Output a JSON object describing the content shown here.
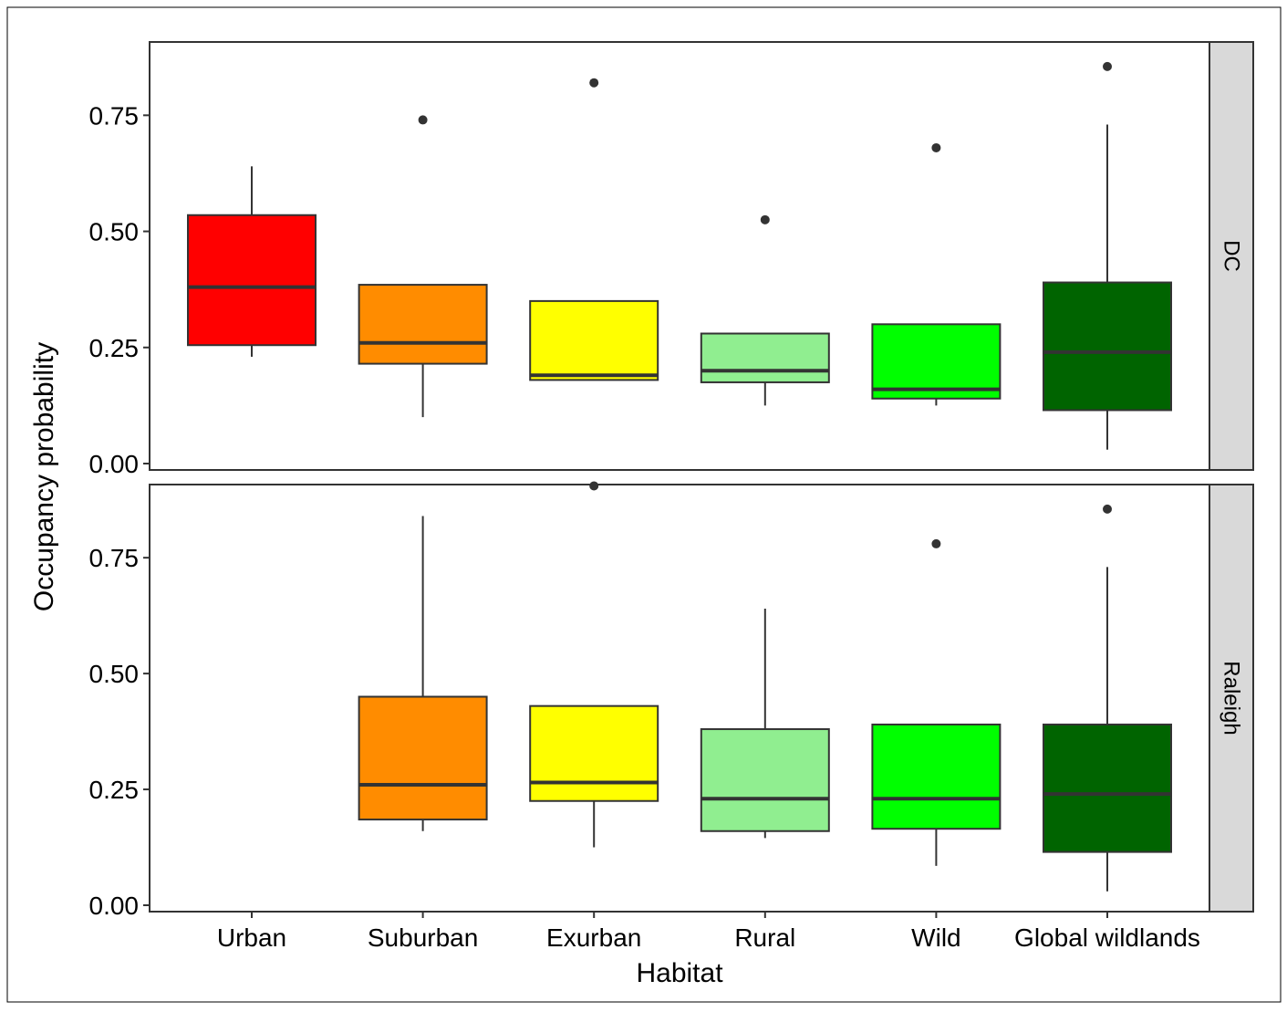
{
  "chart_data": {
    "type": "boxplot",
    "xlabel": "Habitat",
    "ylabel": "Occupancy probability",
    "categories": [
      "Urban",
      "Suburban",
      "Exurban",
      "Rural",
      "Wild",
      "Global wildlands"
    ],
    "colors": [
      "#ff0000",
      "#ff8c00",
      "#ffff00",
      "#90ee90",
      "#00ff00",
      "#006400"
    ],
    "ylim": [
      0,
      0.9
    ],
    "yticks": [
      "0.00",
      "0.25",
      "0.50",
      "0.75"
    ],
    "grid": false,
    "facets": [
      {
        "label": "DC",
        "boxes": [
          {
            "category": "Urban",
            "whisker_low": 0.23,
            "q1": 0.255,
            "median": 0.38,
            "q3": 0.535,
            "whisker_high": 0.64,
            "outliers": []
          },
          {
            "category": "Suburban",
            "whisker_low": 0.1,
            "q1": 0.215,
            "median": 0.26,
            "q3": 0.385,
            "whisker_high": 0.385,
            "outliers": [
              0.74
            ]
          },
          {
            "category": "Exurban",
            "whisker_low": 0.18,
            "q1": 0.18,
            "median": 0.19,
            "q3": 0.35,
            "whisker_high": 0.35,
            "outliers": [
              0.82
            ]
          },
          {
            "category": "Rural",
            "whisker_low": 0.125,
            "q1": 0.175,
            "median": 0.2,
            "q3": 0.28,
            "whisker_high": 0.28,
            "outliers": [
              0.525
            ]
          },
          {
            "category": "Wild",
            "whisker_low": 0.125,
            "q1": 0.14,
            "median": 0.16,
            "q3": 0.3,
            "whisker_high": 0.3,
            "outliers": [
              0.68
            ]
          },
          {
            "category": "Global wildlands",
            "whisker_low": 0.03,
            "q1": 0.115,
            "median": 0.24,
            "q3": 0.39,
            "whisker_high": 0.73,
            "outliers": [
              0.855
            ]
          }
        ]
      },
      {
        "label": "Raleigh",
        "boxes": [
          {
            "category": "Suburban",
            "whisker_low": 0.16,
            "q1": 0.185,
            "median": 0.26,
            "q3": 0.45,
            "whisker_high": 0.84,
            "outliers": []
          },
          {
            "category": "Exurban",
            "whisker_low": 0.125,
            "q1": 0.225,
            "median": 0.265,
            "q3": 0.43,
            "whisker_high": 0.43,
            "outliers": [
              0.905
            ]
          },
          {
            "category": "Rural",
            "whisker_low": 0.145,
            "q1": 0.16,
            "median": 0.23,
            "q3": 0.38,
            "whisker_high": 0.64,
            "outliers": []
          },
          {
            "category": "Wild",
            "whisker_low": 0.085,
            "q1": 0.165,
            "median": 0.23,
            "q3": 0.39,
            "whisker_high": 0.39,
            "outliers": [
              0.78
            ]
          },
          {
            "category": "Global wildlands",
            "whisker_low": 0.03,
            "q1": 0.115,
            "median": 0.24,
            "q3": 0.39,
            "whisker_high": 0.73,
            "outliers": [
              0.855
            ]
          }
        ]
      }
    ]
  }
}
